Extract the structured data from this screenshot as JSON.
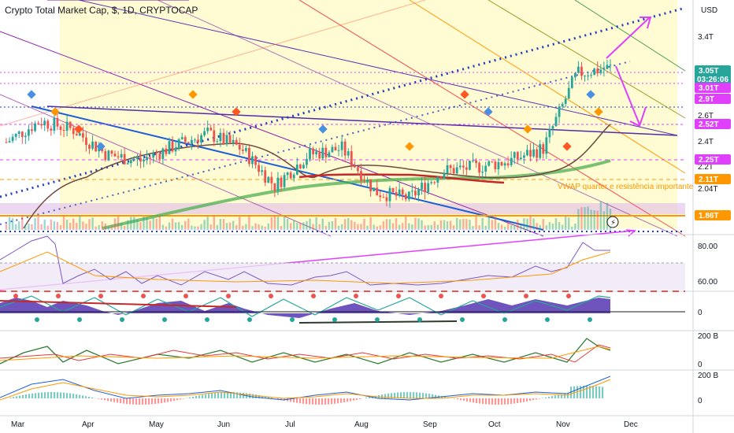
{
  "window": {
    "title": "Crypto Total Market Cap, $, 1D, CRYPTOCAP"
  },
  "price_axis": {
    "currency_label": "USD",
    "ticks": [
      "3.4T",
      "2.6T",
      "2.4T",
      "2.2T",
      "2.04T"
    ]
  },
  "price_badges": [
    {
      "label": "3.05T",
      "sub": "03:26:06",
      "color": "#26a69a"
    },
    {
      "label": "3.01T",
      "color": "#e040fb"
    },
    {
      "label": "2.9T",
      "color": "#e040fb"
    },
    {
      "label": "2.52T",
      "color": "#e040fb"
    },
    {
      "label": "2.25T",
      "color": "#e040fb"
    },
    {
      "label": "2.11T",
      "color": "#ff9800"
    },
    {
      "label": "1.86T",
      "color": "#ff9800"
    }
  ],
  "annotation": {
    "vwap_text": "VWAP quarter e resistência importante"
  },
  "time_axis": {
    "labels": [
      "Mar",
      "Apr",
      "May",
      "Jun",
      "Jul",
      "Aug",
      "Sep",
      "Oct",
      "Nov",
      "Dec"
    ]
  },
  "pane_axes": {
    "rsi": [
      "80.00",
      "60.00"
    ],
    "osc": [
      "0"
    ],
    "vol1": [
      "200 B",
      "0"
    ],
    "vol2": [
      "200 B",
      "0"
    ]
  },
  "colors": {
    "up": "#26a69a",
    "down": "#ef5350",
    "channel_fill": "#fff59d",
    "trend_dotted": "#1e3fbf",
    "pink": "#e040fb",
    "orange": "#ff9800"
  },
  "chart_data": {
    "type": "candlestick",
    "title": "Crypto Total Market Cap, $, 1D, CRYPTOCAP",
    "months": [
      "Mar",
      "Apr",
      "May",
      "Jun",
      "Jul",
      "Aug",
      "Sep",
      "Oct",
      "Nov",
      "Dec"
    ],
    "close_trend": [
      {
        "month": "Mar",
        "value": 2.45
      },
      {
        "month": "Mar-mid",
        "value": 2.62
      },
      {
        "month": "Apr",
        "value": 2.55
      },
      {
        "month": "Apr-mid",
        "value": 2.35
      },
      {
        "month": "May",
        "value": 2.3
      },
      {
        "month": "May-mid",
        "value": 2.42
      },
      {
        "month": "Jun",
        "value": 2.52
      },
      {
        "month": "Jun-mid",
        "value": 2.4
      },
      {
        "month": "Jul",
        "value": 2.1
      },
      {
        "month": "Jul-mid",
        "value": 2.35
      },
      {
        "month": "Aug",
        "value": 2.4
      },
      {
        "month": "Aug-mid",
        "value": 2.05
      },
      {
        "month": "Sep",
        "value": 2.0
      },
      {
        "month": "Sep-mid",
        "value": 2.22
      },
      {
        "month": "Oct",
        "value": 2.25
      },
      {
        "month": "Oct-mid",
        "value": 2.3
      },
      {
        "month": "Nov",
        "value": 2.4
      },
      {
        "month": "Nov-mid",
        "value": 3.0
      },
      {
        "month": "Nov-end",
        "value": 3.05
      }
    ],
    "levels": [
      "3.01T",
      "2.9T",
      "2.52T",
      "2.25T",
      "2.11T",
      "1.86T"
    ],
    "last_price": "3.05T"
  }
}
